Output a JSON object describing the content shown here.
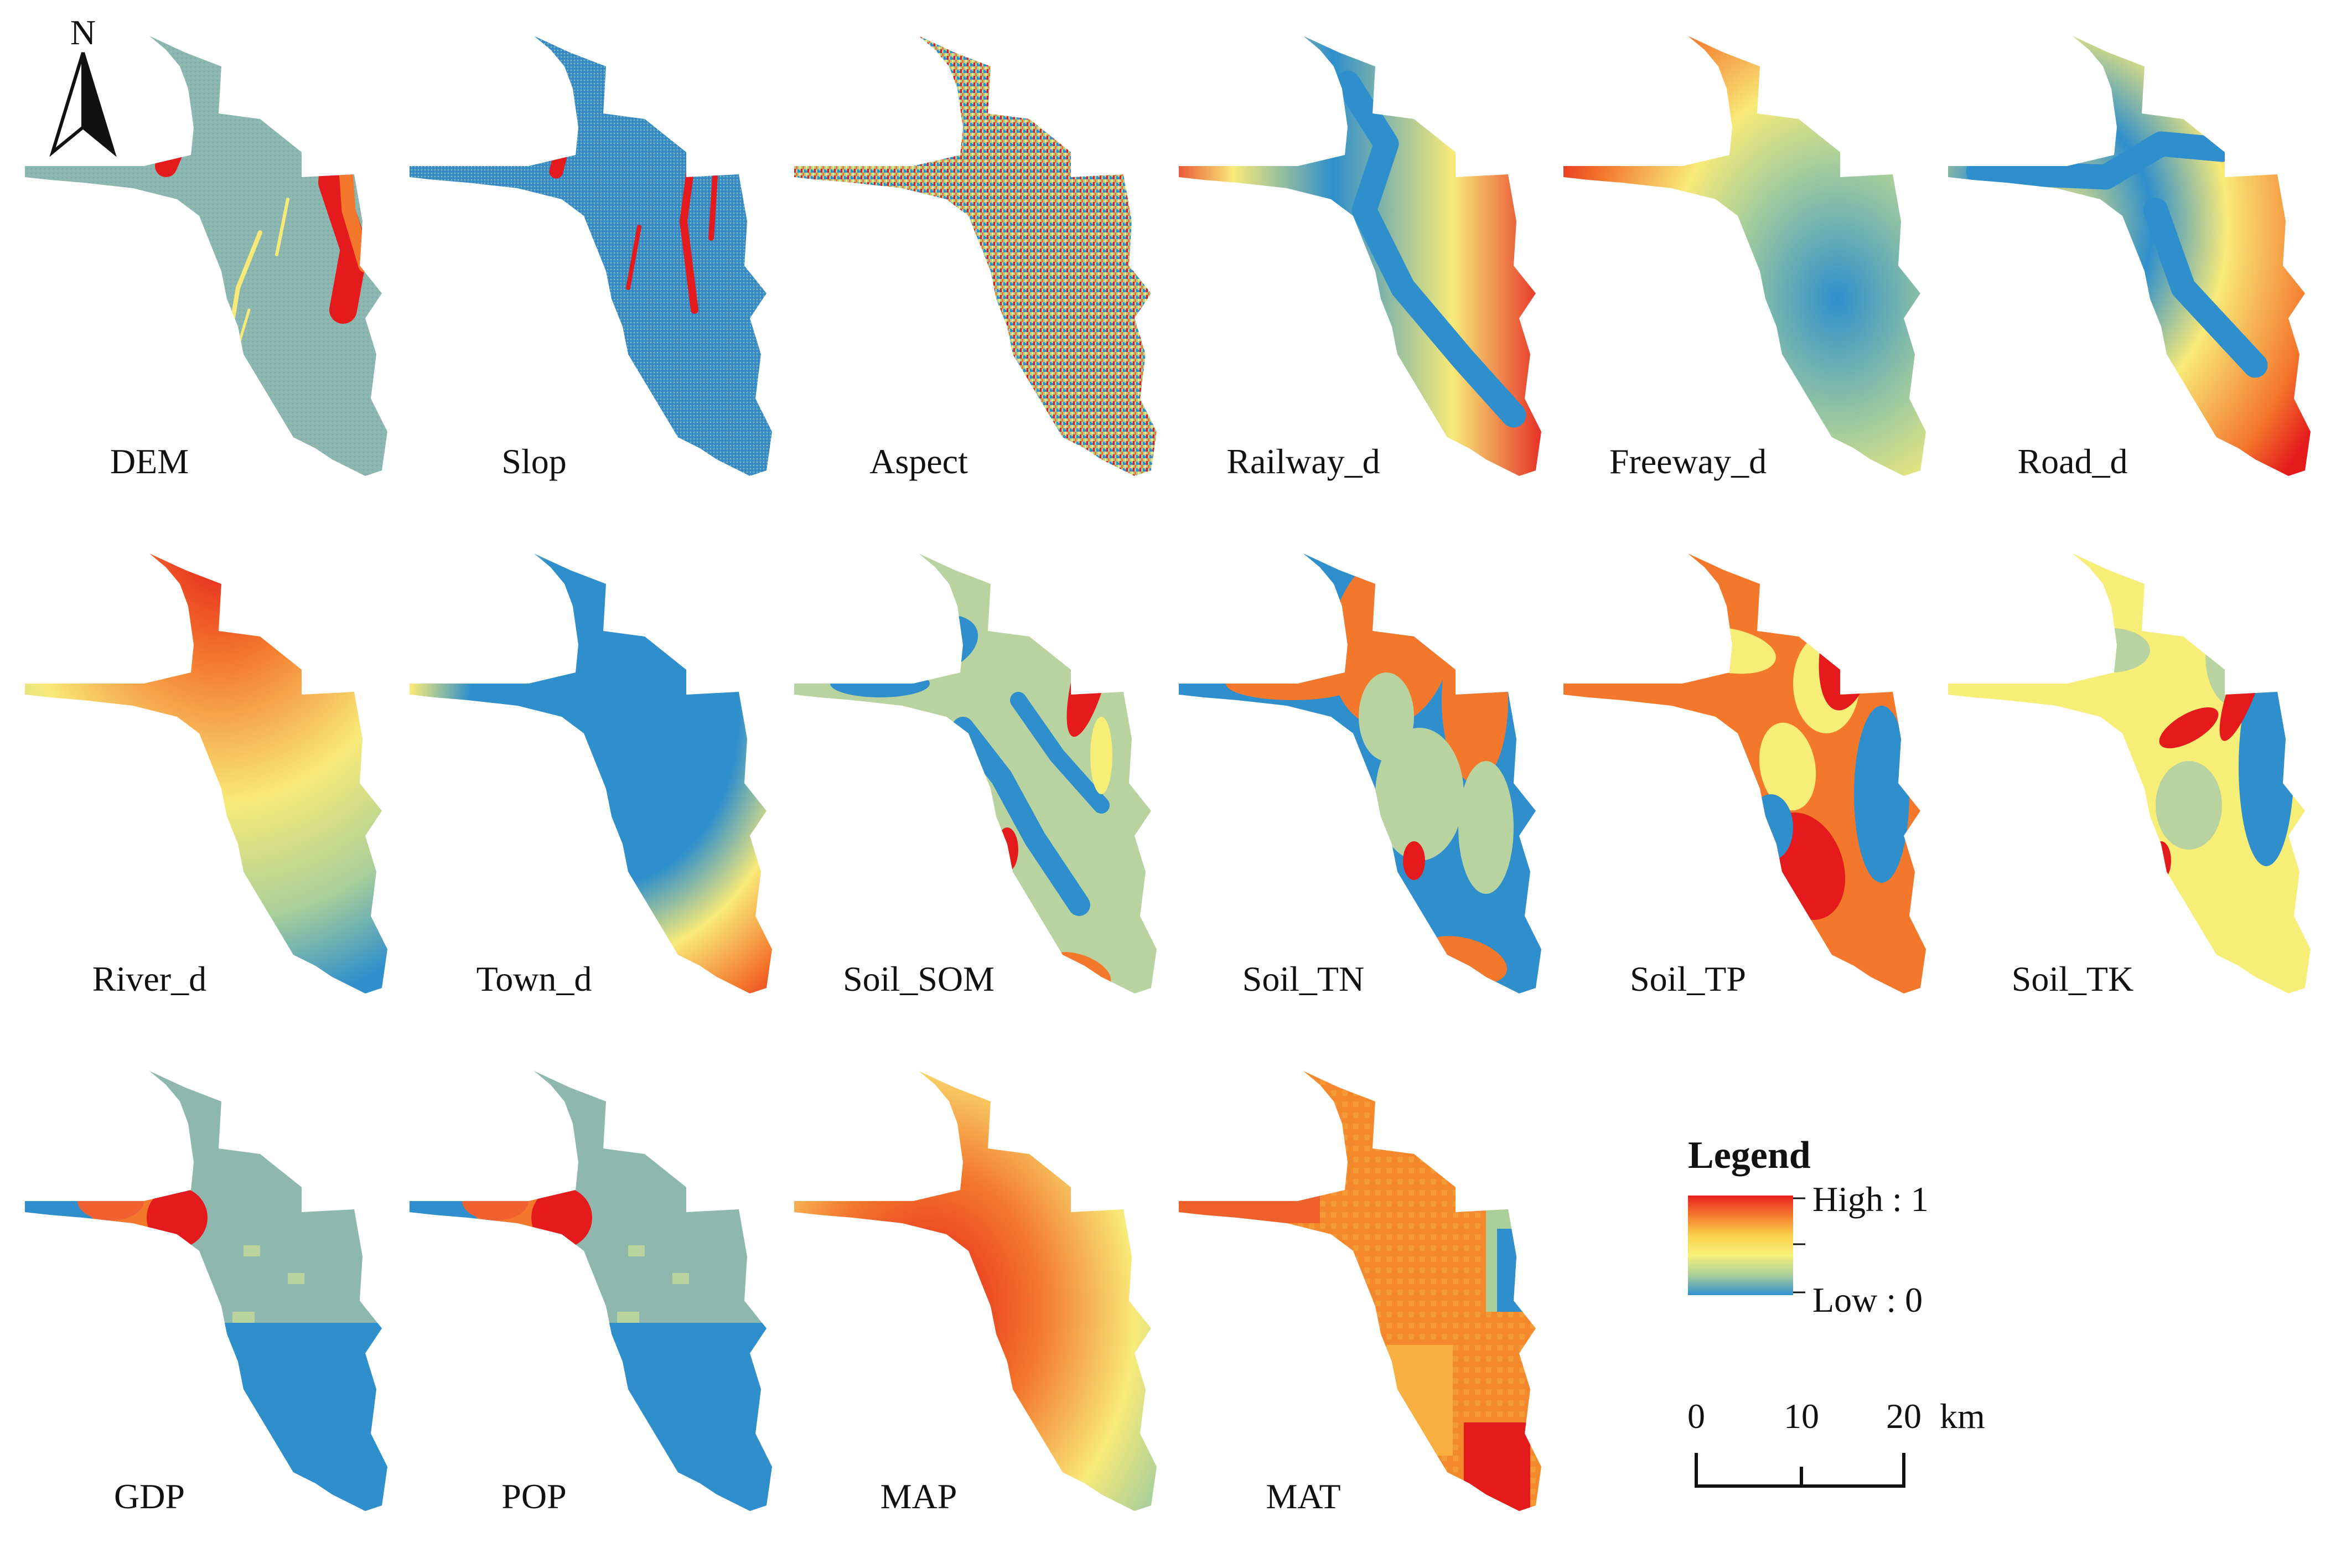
{
  "north_arrow": {
    "letter": "N"
  },
  "panels": [
    {
      "label": "DEM",
      "style": "dem"
    },
    {
      "label": "Slop",
      "style": "slop"
    },
    {
      "label": "Aspect",
      "style": "aspect"
    },
    {
      "label": "Railway_d",
      "style": "railway"
    },
    {
      "label": "Freeway_d",
      "style": "freeway"
    },
    {
      "label": "Road_d",
      "style": "road"
    },
    {
      "label": "River_d",
      "style": "river"
    },
    {
      "label": "Town_d",
      "style": "town"
    },
    {
      "label": "Soil_SOM",
      "style": "soil_som"
    },
    {
      "label": "Soil_TN",
      "style": "soil_tn"
    },
    {
      "label": "Soil_TP",
      "style": "soil_tp"
    },
    {
      "label": "Soil_TK",
      "style": "soil_tk"
    },
    {
      "label": "GDP",
      "style": "gdp"
    },
    {
      "label": "POP",
      "style": "pop"
    },
    {
      "label": "MAP",
      "style": "map"
    },
    {
      "label": "MAT",
      "style": "mat"
    }
  ],
  "legend": {
    "title": "Legend",
    "high_label": "High : 1",
    "low_label": "Low : 0",
    "ramp_colors": [
      "#e8201c",
      "#f47a2e",
      "#fbd04a",
      "#f6f07a",
      "#a9cf9a",
      "#2f8fcd"
    ]
  },
  "scale_bar": {
    "ticks": [
      "0",
      "10",
      "20"
    ],
    "unit": "km"
  },
  "colors": {
    "red": "#e41a1c",
    "orange": "#f4782c",
    "yellow": "#f7ee77",
    "green": "#b9d3a0",
    "sage": "#a3c2a6",
    "blue": "#2e8fcc"
  }
}
